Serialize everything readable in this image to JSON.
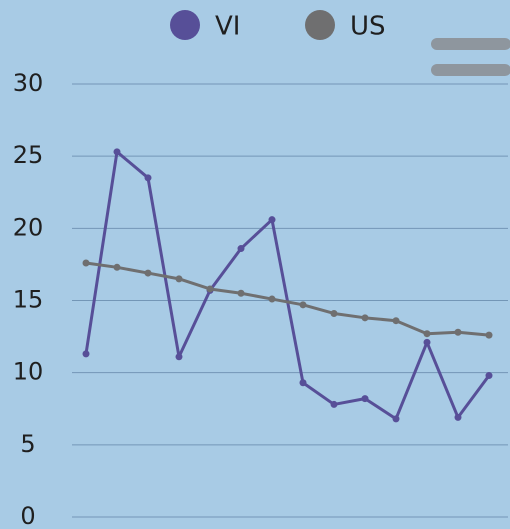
{
  "chart_data": {
    "type": "line",
    "categories": [
      null,
      null,
      null,
      null,
      null,
      null,
      null,
      null,
      null,
      null,
      null,
      null,
      null,
      null
    ],
    "series": [
      {
        "name": "VI",
        "color": "#574f98",
        "values": [
          11.3,
          25.3,
          23.5,
          11.1,
          15.7,
          18.6,
          20.6,
          9.3,
          7.8,
          8.2,
          6.8,
          12.1,
          6.9,
          9.8
        ]
      },
      {
        "name": "US",
        "color": "#6f6f70",
        "values": [
          17.6,
          17.3,
          16.9,
          16.5,
          15.8,
          15.5,
          15.1,
          14.7,
          14.1,
          13.8,
          13.6,
          12.7,
          12.8,
          12.6
        ]
      }
    ],
    "ylim": [
      0,
      30
    ],
    "yticks": [
      0,
      5,
      10,
      15,
      20,
      25,
      30
    ],
    "grid": true,
    "legend": "top"
  }
}
